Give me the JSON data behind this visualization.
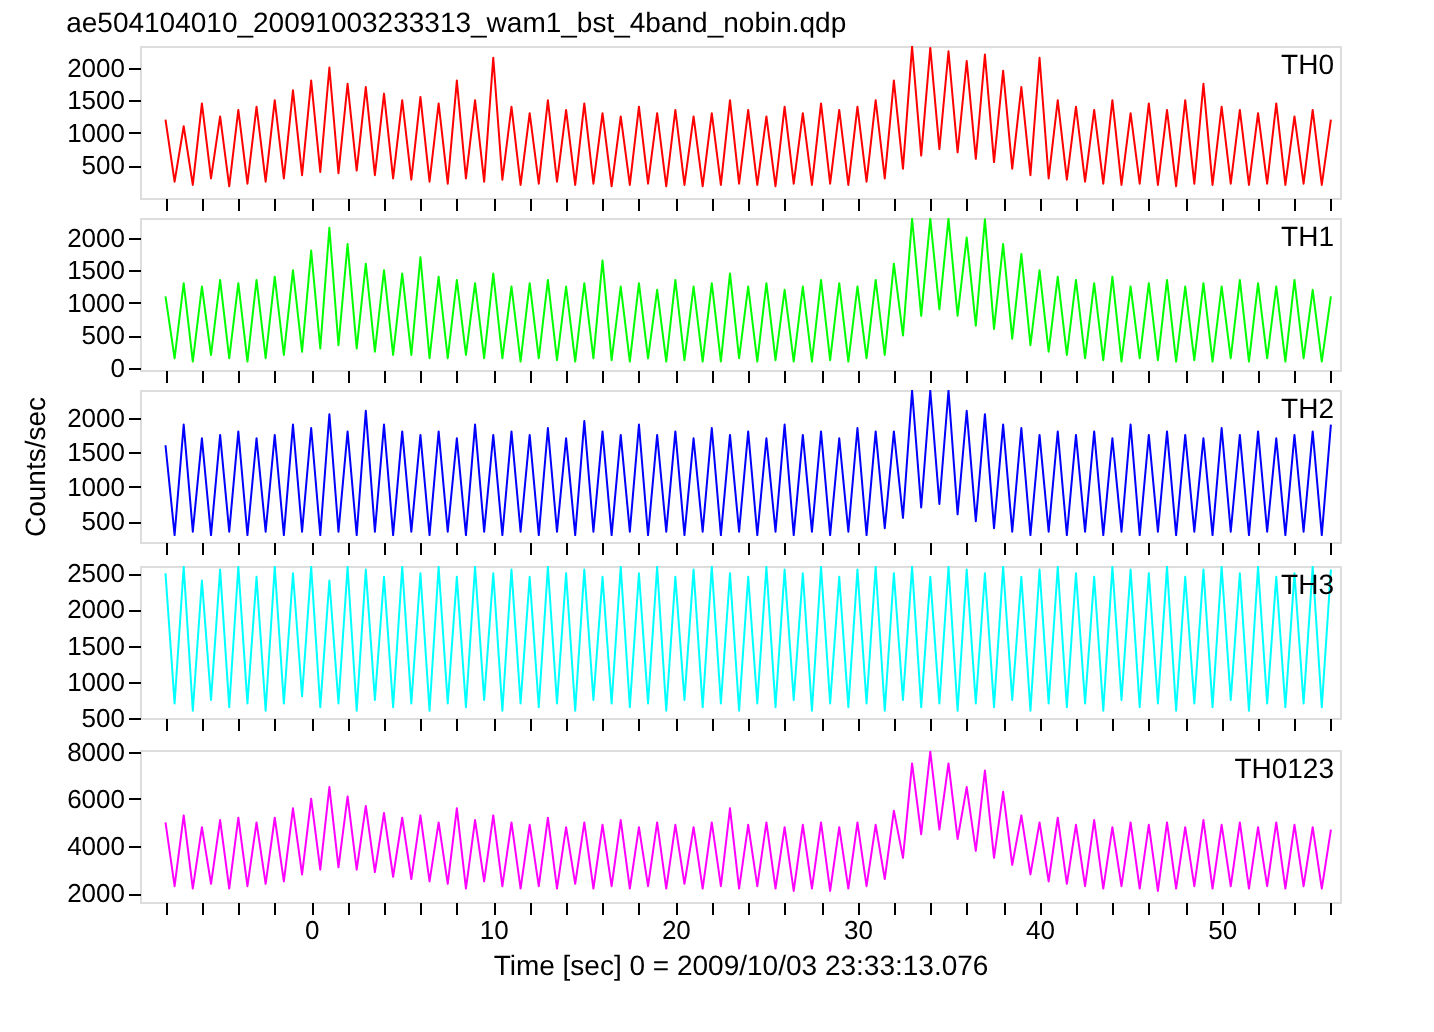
{
  "chart_data": [
    {
      "type": "line",
      "title": "ae504104010_20091003233313_wam1_bst_4band_nobin.qdp",
      "tick_labels": "y",
      "xlim": [
        -9.4,
        56.5
      ],
      "ylim": [
        0,
        2330
      ],
      "yticks": [
        500,
        1000,
        1500,
        2000
      ],
      "xticks": [
        {
          "value": -8,
          "label": null
        },
        {
          "value": -6,
          "label": null
        },
        {
          "value": -4,
          "label": null
        },
        {
          "value": -2,
          "label": null
        },
        0,
        {
          "value": 2,
          "label": null
        },
        {
          "value": 4,
          "label": null
        },
        {
          "value": 6,
          "label": null
        },
        {
          "value": 8,
          "label": null
        },
        10,
        {
          "value": 12,
          "label": null
        },
        {
          "value": 14,
          "label": null
        },
        {
          "value": 16,
          "label": null
        },
        {
          "value": 18,
          "label": null
        },
        20,
        {
          "value": 22,
          "label": null
        },
        {
          "value": 24,
          "label": null
        },
        {
          "value": 26,
          "label": null
        },
        {
          "value": 28,
          "label": null
        },
        30,
        {
          "value": 32,
          "label": null
        },
        {
          "value": 34,
          "label": null
        },
        {
          "value": 36,
          "label": null
        },
        {
          "value": 38,
          "label": null
        },
        40,
        {
          "value": 42,
          "label": null
        },
        {
          "value": 44,
          "label": null
        },
        {
          "value": 46,
          "label": null
        },
        {
          "value": 48,
          "label": null
        },
        50,
        {
          "value": 52,
          "label": null
        },
        {
          "value": 54,
          "label": null
        },
        {
          "value": 56,
          "label": null
        }
      ],
      "x": [
        -8,
        -7.5,
        -7,
        -6.5,
        -6,
        -5.5,
        -5,
        -4.5,
        -4,
        -3.5,
        -3,
        -2.5,
        -2,
        -1.5,
        -1,
        -0.5,
        0,
        0.5,
        1,
        1.5,
        2,
        2.5,
        3,
        3.5,
        4,
        4.5,
        5,
        5.5,
        6,
        6.5,
        7,
        7.5,
        8,
        8.5,
        9,
        9.5,
        10,
        10.5,
        11,
        11.5,
        12,
        12.5,
        13,
        13.5,
        14,
        14.5,
        15,
        15.5,
        16,
        16.5,
        17,
        17.5,
        18,
        18.5,
        19,
        19.5,
        20,
        20.5,
        21,
        21.5,
        22,
        22.5,
        23,
        23.5,
        24,
        24.5,
        25,
        25.5,
        26,
        26.5,
        27,
        27.5,
        28,
        28.5,
        29,
        29.5,
        30,
        30.5,
        31,
        31.5,
        32,
        32.5,
        33,
        33.5,
        34,
        34.5,
        35,
        35.5,
        36,
        36.5,
        37,
        37.5,
        38,
        38.5,
        39,
        39.5,
        40,
        40.5,
        41,
        41.5,
        42,
        42.5,
        43,
        43.5,
        44,
        44.5,
        45,
        45.5,
        46,
        46.5,
        47,
        47.5,
        48,
        48.5,
        49,
        49.5,
        50,
        50.5,
        51,
        51.5,
        52,
        52.5,
        53,
        53.5,
        54,
        54.5,
        55,
        55.5,
        56
      ],
      "series": [
        {
          "name": "TH0",
          "color": "#ff0000",
          "values": [
            1200,
            250,
            1100,
            200,
            1450,
            300,
            1250,
            180,
            1350,
            220,
            1400,
            250,
            1500,
            300,
            1650,
            350,
            1800,
            400,
            2000,
            380,
            1750,
            420,
            1700,
            350,
            1600,
            300,
            1500,
            280,
            1550,
            250,
            1450,
            220,
            1800,
            300,
            1500,
            250,
            2150,
            280,
            1400,
            200,
            1300,
            220,
            1500,
            250,
            1350,
            200,
            1450,
            220,
            1300,
            180,
            1250,
            200,
            1400,
            220,
            1300,
            180,
            1350,
            200,
            1250,
            180,
            1300,
            200,
            1500,
            220,
            1350,
            200,
            1250,
            180,
            1400,
            220,
            1300,
            200,
            1450,
            220,
            1350,
            200,
            1400,
            250,
            1500,
            300,
            1800,
            450,
            2320,
            650,
            2300,
            750,
            2250,
            700,
            2100,
            600,
            2200,
            550,
            1950,
            450,
            1700,
            350,
            2150,
            300,
            1500,
            280,
            1400,
            250,
            1350,
            220,
            1500,
            200,
            1300,
            220,
            1450,
            200,
            1350,
            180,
            1500,
            220,
            1750,
            200,
            1400,
            220,
            1350,
            200,
            1300,
            220,
            1450,
            200,
            1250,
            220,
            1350,
            200,
            1200
          ]
        }
      ]
    },
    {
      "type": "line",
      "tick_labels": "y",
      "xlim": [
        -9.4,
        56.5
      ],
      "ylim": [
        -30,
        2300
      ],
      "yticks": [
        0,
        500,
        1000,
        1500,
        2000
      ],
      "xticks": [
        {
          "value": -8,
          "label": null
        },
        {
          "value": -6,
          "label": null
        },
        {
          "value": -4,
          "label": null
        },
        {
          "value": -2,
          "label": null
        },
        0,
        {
          "value": 2,
          "label": null
        },
        {
          "value": 4,
          "label": null
        },
        {
          "value": 6,
          "label": null
        },
        {
          "value": 8,
          "label": null
        },
        10,
        {
          "value": 12,
          "label": null
        },
        {
          "value": 14,
          "label": null
        },
        {
          "value": 16,
          "label": null
        },
        {
          "value": 18,
          "label": null
        },
        20,
        {
          "value": 22,
          "label": null
        },
        {
          "value": 24,
          "label": null
        },
        {
          "value": 26,
          "label": null
        },
        {
          "value": 28,
          "label": null
        },
        30,
        {
          "value": 32,
          "label": null
        },
        {
          "value": 34,
          "label": null
        },
        {
          "value": 36,
          "label": null
        },
        {
          "value": 38,
          "label": null
        },
        40,
        {
          "value": 42,
          "label": null
        },
        {
          "value": 44,
          "label": null
        },
        {
          "value": 46,
          "label": null
        },
        {
          "value": 48,
          "label": null
        },
        50,
        {
          "value": 52,
          "label": null
        },
        {
          "value": 54,
          "label": null
        },
        {
          "value": 56,
          "label": null
        }
      ],
      "x": [
        -8,
        -7.5,
        -7,
        -6.5,
        -6,
        -5.5,
        -5,
        -4.5,
        -4,
        -3.5,
        -3,
        -2.5,
        -2,
        -1.5,
        -1,
        -0.5,
        0,
        0.5,
        1,
        1.5,
        2,
        2.5,
        3,
        3.5,
        4,
        4.5,
        5,
        5.5,
        6,
        6.5,
        7,
        7.5,
        8,
        8.5,
        9,
        9.5,
        10,
        10.5,
        11,
        11.5,
        12,
        12.5,
        13,
        13.5,
        14,
        14.5,
        15,
        15.5,
        16,
        16.5,
        17,
        17.5,
        18,
        18.5,
        19,
        19.5,
        20,
        20.5,
        21,
        21.5,
        22,
        22.5,
        23,
        23.5,
        24,
        24.5,
        25,
        25.5,
        26,
        26.5,
        27,
        27.5,
        28,
        28.5,
        29,
        29.5,
        30,
        30.5,
        31,
        31.5,
        32,
        32.5,
        33,
        33.5,
        34,
        34.5,
        35,
        35.5,
        36,
        36.5,
        37,
        37.5,
        38,
        38.5,
        39,
        39.5,
        40,
        40.5,
        41,
        41.5,
        42,
        42.5,
        43,
        43.5,
        44,
        44.5,
        45,
        45.5,
        46,
        46.5,
        47,
        47.5,
        48,
        48.5,
        49,
        49.5,
        50,
        50.5,
        51,
        51.5,
        52,
        52.5,
        53,
        53.5,
        54,
        54.5,
        55,
        55.5,
        56
      ],
      "series": [
        {
          "name": "TH1",
          "color": "#00ff00",
          "values": [
            1100,
            150,
            1300,
            100,
            1250,
            200,
            1350,
            150,
            1300,
            100,
            1350,
            150,
            1400,
            200,
            1500,
            250,
            1800,
            300,
            2150,
            350,
            1900,
            300,
            1600,
            250,
            1500,
            200,
            1450,
            200,
            1700,
            150,
            1400,
            150,
            1350,
            200,
            1300,
            150,
            1450,
            150,
            1250,
            100,
            1300,
            150,
            1350,
            120,
            1250,
            100,
            1300,
            150,
            1650,
            120,
            1250,
            100,
            1300,
            150,
            1200,
            100,
            1350,
            120,
            1250,
            100,
            1300,
            100,
            1450,
            150,
            1250,
            100,
            1300,
            120,
            1200,
            100,
            1250,
            100,
            1350,
            120,
            1300,
            100,
            1250,
            150,
            1350,
            200,
            1600,
            500,
            2290,
            800,
            2290,
            900,
            2290,
            800,
            2000,
            650,
            2280,
            600,
            1900,
            450,
            1750,
            350,
            1500,
            250,
            1400,
            200,
            1350,
            150,
            1300,
            120,
            1400,
            100,
            1250,
            150,
            1300,
            120,
            1350,
            100,
            1250,
            120,
            1300,
            100,
            1250,
            150,
            1350,
            100,
            1300,
            150,
            1250,
            100,
            1350,
            150,
            1200,
            100,
            1100
          ]
        }
      ]
    },
    {
      "type": "line",
      "tick_labels": "y",
      "ylabel": "Counts/sec",
      "xlim": [
        -9.4,
        56.5
      ],
      "ylim": [
        200,
        2400
      ],
      "yticks": [
        500,
        1000,
        1500,
        2000
      ],
      "xticks": [
        {
          "value": -8,
          "label": null
        },
        {
          "value": -6,
          "label": null
        },
        {
          "value": -4,
          "label": null
        },
        {
          "value": -2,
          "label": null
        },
        0,
        {
          "value": 2,
          "label": null
        },
        {
          "value": 4,
          "label": null
        },
        {
          "value": 6,
          "label": null
        },
        {
          "value": 8,
          "label": null
        },
        10,
        {
          "value": 12,
          "label": null
        },
        {
          "value": 14,
          "label": null
        },
        {
          "value": 16,
          "label": null
        },
        {
          "value": 18,
          "label": null
        },
        20,
        {
          "value": 22,
          "label": null
        },
        {
          "value": 24,
          "label": null
        },
        {
          "value": 26,
          "label": null
        },
        {
          "value": 28,
          "label": null
        },
        30,
        {
          "value": 32,
          "label": null
        },
        {
          "value": 34,
          "label": null
        },
        {
          "value": 36,
          "label": null
        },
        {
          "value": 38,
          "label": null
        },
        40,
        {
          "value": 42,
          "label": null
        },
        {
          "value": 44,
          "label": null
        },
        {
          "value": 46,
          "label": null
        },
        {
          "value": 48,
          "label": null
        },
        50,
        {
          "value": 52,
          "label": null
        },
        {
          "value": 54,
          "label": null
        },
        {
          "value": 56,
          "label": null
        }
      ],
      "x": [
        -8,
        -7.5,
        -7,
        -6.5,
        -6,
        -5.5,
        -5,
        -4.5,
        -4,
        -3.5,
        -3,
        -2.5,
        -2,
        -1.5,
        -1,
        -0.5,
        0,
        0.5,
        1,
        1.5,
        2,
        2.5,
        3,
        3.5,
        4,
        4.5,
        5,
        5.5,
        6,
        6.5,
        7,
        7.5,
        8,
        8.5,
        9,
        9.5,
        10,
        10.5,
        11,
        11.5,
        12,
        12.5,
        13,
        13.5,
        14,
        14.5,
        15,
        15.5,
        16,
        16.5,
        17,
        17.5,
        18,
        18.5,
        19,
        19.5,
        20,
        20.5,
        21,
        21.5,
        22,
        22.5,
        23,
        23.5,
        24,
        24.5,
        25,
        25.5,
        26,
        26.5,
        27,
        27.5,
        28,
        28.5,
        29,
        29.5,
        30,
        30.5,
        31,
        31.5,
        32,
        32.5,
        33,
        33.5,
        34,
        34.5,
        35,
        35.5,
        36,
        36.5,
        37,
        37.5,
        38,
        38.5,
        39,
        39.5,
        40,
        40.5,
        41,
        41.5,
        42,
        42.5,
        43,
        43.5,
        44,
        44.5,
        45,
        45.5,
        46,
        46.5,
        47,
        47.5,
        48,
        48.5,
        49,
        49.5,
        50,
        50.5,
        51,
        51.5,
        52,
        52.5,
        53,
        53.5,
        54,
        54.5,
        55,
        55.5,
        56
      ],
      "series": [
        {
          "name": "TH2",
          "color": "#0000ff",
          "values": [
            1600,
            300,
            1900,
            350,
            1700,
            300,
            1750,
            350,
            1800,
            300,
            1700,
            350,
            1750,
            300,
            1900,
            350,
            1850,
            300,
            2050,
            350,
            1800,
            300,
            2100,
            350,
            1900,
            300,
            1800,
            350,
            1750,
            300,
            1800,
            350,
            1700,
            300,
            1900,
            350,
            1750,
            300,
            1800,
            350,
            1750,
            300,
            1850,
            350,
            1700,
            300,
            1950,
            350,
            1800,
            300,
            1750,
            350,
            1900,
            300,
            1750,
            350,
            1800,
            300,
            1700,
            350,
            1850,
            300,
            1750,
            350,
            1800,
            300,
            1700,
            350,
            1900,
            300,
            1750,
            350,
            1800,
            300,
            1700,
            350,
            1850,
            300,
            1800,
            400,
            1800,
            550,
            2390,
            700,
            2390,
            750,
            2390,
            600,
            2100,
            500,
            2050,
            400,
            1900,
            350,
            1850,
            300,
            1750,
            350,
            1800,
            300,
            1750,
            350,
            1800,
            300,
            1700,
            350,
            1900,
            300,
            1750,
            350,
            1800,
            300,
            1750,
            350,
            1700,
            300,
            1850,
            350,
            1750,
            300,
            1800,
            350,
            1700,
            300,
            1750,
            350,
            1800,
            300,
            1900
          ]
        }
      ]
    },
    {
      "type": "line",
      "tick_labels": "y",
      "xlim": [
        -9.4,
        56.5
      ],
      "ylim": [
        500,
        2600
      ],
      "yticks": [
        500,
        1000,
        1500,
        2000,
        2500
      ],
      "xticks": [
        {
          "value": -8,
          "label": null
        },
        {
          "value": -6,
          "label": null
        },
        {
          "value": -4,
          "label": null
        },
        {
          "value": -2,
          "label": null
        },
        0,
        {
          "value": 2,
          "label": null
        },
        {
          "value": 4,
          "label": null
        },
        {
          "value": 6,
          "label": null
        },
        {
          "value": 8,
          "label": null
        },
        10,
        {
          "value": 12,
          "label": null
        },
        {
          "value": 14,
          "label": null
        },
        {
          "value": 16,
          "label": null
        },
        {
          "value": 18,
          "label": null
        },
        20,
        {
          "value": 22,
          "label": null
        },
        {
          "value": 24,
          "label": null
        },
        {
          "value": 26,
          "label": null
        },
        {
          "value": 28,
          "label": null
        },
        30,
        {
          "value": 32,
          "label": null
        },
        {
          "value": 34,
          "label": null
        },
        {
          "value": 36,
          "label": null
        },
        {
          "value": 38,
          "label": null
        },
        40,
        {
          "value": 42,
          "label": null
        },
        {
          "value": 44,
          "label": null
        },
        {
          "value": 46,
          "label": null
        },
        {
          "value": 48,
          "label": null
        },
        50,
        {
          "value": 52,
          "label": null
        },
        {
          "value": 54,
          "label": null
        },
        {
          "value": 56,
          "label": null
        }
      ],
      "x": [
        -8,
        -7.5,
        -7,
        -6.5,
        -6,
        -5.5,
        -5,
        -4.5,
        -4,
        -3.5,
        -3,
        -2.5,
        -2,
        -1.5,
        -1,
        -0.5,
        0,
        0.5,
        1,
        1.5,
        2,
        2.5,
        3,
        3.5,
        4,
        4.5,
        5,
        5.5,
        6,
        6.5,
        7,
        7.5,
        8,
        8.5,
        9,
        9.5,
        10,
        10.5,
        11,
        11.5,
        12,
        12.5,
        13,
        13.5,
        14,
        14.5,
        15,
        15.5,
        16,
        16.5,
        17,
        17.5,
        18,
        18.5,
        19,
        19.5,
        20,
        20.5,
        21,
        21.5,
        22,
        22.5,
        23,
        23.5,
        24,
        24.5,
        25,
        25.5,
        26,
        26.5,
        27,
        27.5,
        28,
        28.5,
        29,
        29.5,
        30,
        30.5,
        31,
        31.5,
        32,
        32.5,
        33,
        33.5,
        34,
        34.5,
        35,
        35.5,
        36,
        36.5,
        37,
        37.5,
        38,
        38.5,
        39,
        39.5,
        40,
        40.5,
        41,
        41.5,
        42,
        42.5,
        43,
        43.5,
        44,
        44.5,
        45,
        45.5,
        46,
        46.5,
        47,
        47.5,
        48,
        48.5,
        49,
        49.5,
        50,
        50.5,
        51,
        51.5,
        52,
        52.5,
        53,
        53.5,
        54,
        54.5,
        55,
        55.5,
        56
      ],
      "series": [
        {
          "name": "TH3",
          "color": "#00ffff",
          "values": [
            2500,
            700,
            2590,
            600,
            2400,
            750,
            2550,
            650,
            2590,
            700,
            2450,
            600,
            2590,
            700,
            2500,
            800,
            2590,
            650,
            2400,
            700,
            2590,
            600,
            2550,
            750,
            2450,
            650,
            2590,
            700,
            2500,
            600,
            2590,
            700,
            2450,
            650,
            2590,
            750,
            2500,
            600,
            2550,
            700,
            2450,
            650,
            2590,
            700,
            2500,
            600,
            2550,
            750,
            2450,
            700,
            2590,
            650,
            2500,
            700,
            2590,
            600,
            2450,
            750,
            2550,
            650,
            2590,
            700,
            2500,
            600,
            2450,
            700,
            2590,
            650,
            2550,
            750,
            2500,
            600,
            2590,
            700,
            2450,
            650,
            2550,
            700,
            2590,
            600,
            2500,
            750,
            2590,
            650,
            2450,
            700,
            2590,
            600,
            2550,
            700,
            2500,
            650,
            2590,
            750,
            2450,
            600,
            2550,
            700,
            2590,
            650,
            2500,
            700,
            2450,
            600,
            2590,
            750,
            2550,
            650,
            2500,
            700,
            2590,
            600,
            2450,
            700,
            2550,
            650,
            2590,
            750,
            2500,
            600,
            2590,
            700,
            2450,
            650,
            2500,
            700,
            2590,
            650,
            2550
          ]
        }
      ]
    },
    {
      "type": "line",
      "xlabel": "Time [sec] 0 = 2009/10/03 23:33:13.076",
      "xlim": [
        -9.4,
        56.5
      ],
      "ylim": [
        1630,
        8070
      ],
      "yticks": [
        2000,
        4000,
        6000,
        8000
      ],
      "xticks": [
        {
          "value": -8,
          "label": null
        },
        {
          "value": -6,
          "label": null
        },
        {
          "value": -4,
          "label": null
        },
        {
          "value": -2,
          "label": null
        },
        0,
        {
          "value": 2,
          "label": null
        },
        {
          "value": 4,
          "label": null
        },
        {
          "value": 6,
          "label": null
        },
        {
          "value": 8,
          "label": null
        },
        10,
        {
          "value": 12,
          "label": null
        },
        {
          "value": 14,
          "label": null
        },
        {
          "value": 16,
          "label": null
        },
        {
          "value": 18,
          "label": null
        },
        20,
        {
          "value": 22,
          "label": null
        },
        {
          "value": 24,
          "label": null
        },
        {
          "value": 26,
          "label": null
        },
        {
          "value": 28,
          "label": null
        },
        30,
        {
          "value": 32,
          "label": null
        },
        {
          "value": 34,
          "label": null
        },
        {
          "value": 36,
          "label": null
        },
        {
          "value": 38,
          "label": null
        },
        40,
        {
          "value": 42,
          "label": null
        },
        {
          "value": 44,
          "label": null
        },
        {
          "value": 46,
          "label": null
        },
        {
          "value": 48,
          "label": null
        },
        50,
        {
          "value": 52,
          "label": null
        },
        {
          "value": 54,
          "label": null
        },
        {
          "value": 56,
          "label": null
        }
      ],
      "x": [
        -8,
        -7.5,
        -7,
        -6.5,
        -6,
        -5.5,
        -5,
        -4.5,
        -4,
        -3.5,
        -3,
        -2.5,
        -2,
        -1.5,
        -1,
        -0.5,
        0,
        0.5,
        1,
        1.5,
        2,
        2.5,
        3,
        3.5,
        4,
        4.5,
        5,
        5.5,
        6,
        6.5,
        7,
        7.5,
        8,
        8.5,
        9,
        9.5,
        10,
        10.5,
        11,
        11.5,
        12,
        12.5,
        13,
        13.5,
        14,
        14.5,
        15,
        15.5,
        16,
        16.5,
        17,
        17.5,
        18,
        18.5,
        19,
        19.5,
        20,
        20.5,
        21,
        21.5,
        22,
        22.5,
        23,
        23.5,
        24,
        24.5,
        25,
        25.5,
        26,
        26.5,
        27,
        27.5,
        28,
        28.5,
        29,
        29.5,
        30,
        30.5,
        31,
        31.5,
        32,
        32.5,
        33,
        33.5,
        34,
        34.5,
        35,
        35.5,
        36,
        36.5,
        37,
        37.5,
        38,
        38.5,
        39,
        39.5,
        40,
        40.5,
        41,
        41.5,
        42,
        42.5,
        43,
        43.5,
        44,
        44.5,
        45,
        45.5,
        46,
        46.5,
        47,
        47.5,
        48,
        48.5,
        49,
        49.5,
        50,
        50.5,
        51,
        51.5,
        52,
        52.5,
        53,
        53.5,
        54,
        54.5,
        55,
        55.5,
        56
      ],
      "series": [
        {
          "name": "TH0123",
          "color": "#ff00ff",
          "values": [
            5000,
            2300,
            5300,
            2200,
            4800,
            2400,
            5100,
            2200,
            5200,
            2300,
            5000,
            2400,
            5200,
            2500,
            5600,
            2800,
            6000,
            3000,
            6500,
            3100,
            6100,
            3000,
            5700,
            2900,
            5400,
            2700,
            5200,
            2600,
            5300,
            2500,
            5000,
            2400,
            5600,
            2200,
            5100,
            2500,
            5300,
            2300,
            5000,
            2200,
            4900,
            2300,
            5200,
            2200,
            4800,
            2400,
            5000,
            2200,
            4900,
            2300,
            5100,
            2200,
            4800,
            2300,
            5000,
            2200,
            4900,
            2400,
            4800,
            2200,
            5000,
            2300,
            5600,
            2200,
            4900,
            2300,
            5000,
            2200,
            4800,
            2100,
            4900,
            2200,
            5000,
            2100,
            4800,
            2200,
            5000,
            2300,
            4900,
            2600,
            5500,
            3500,
            7500,
            4500,
            8000,
            4700,
            7500,
            4300,
            6500,
            3800,
            7200,
            3500,
            6300,
            3200,
            5300,
            2800,
            5000,
            2500,
            5200,
            2400,
            4900,
            2300,
            5100,
            2200,
            4800,
            2300,
            5000,
            2200,
            4900,
            2100,
            5000,
            2200,
            4800,
            2300,
            5100,
            2200,
            4900,
            2300,
            5000,
            2200,
            4800,
            2300,
            5000,
            2200,
            4900,
            2300,
            4800,
            2200,
            4700
          ]
        }
      ]
    }
  ]
}
